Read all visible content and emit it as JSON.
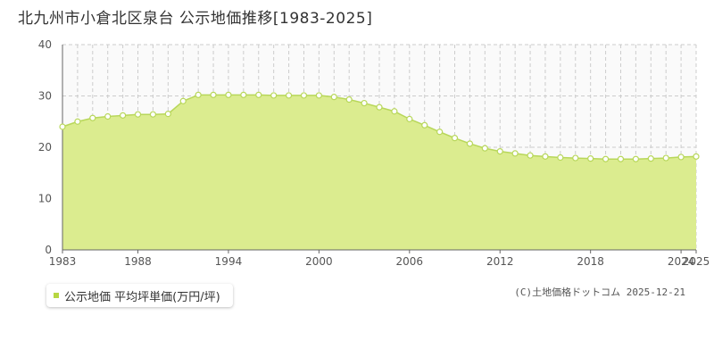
{
  "title": "北九州市小倉北区泉台 公示地価推移[1983-2025]",
  "legend": {
    "label": "公示地価 平均坪単価(万円/坪)"
  },
  "credit": "(C)土地価格ドットコム 2025-12-21",
  "colors": {
    "fill": "#dbec8f",
    "line": "#b8d75a",
    "point_fill": "#ffffff",
    "point_stroke": "#b8d75a",
    "grid": "#cccccc",
    "legend_swatch": "#b7d742"
  },
  "chart_data": {
    "type": "area",
    "xlabel": "",
    "ylabel": "",
    "ylim": [
      0,
      40
    ],
    "xlim": [
      1983,
      2025
    ],
    "grid": true,
    "y_ticks": [
      "0",
      "10",
      "20",
      "30",
      "40"
    ],
    "x_ticks": [
      "1983",
      "1988",
      "1994",
      "2000",
      "2006",
      "2012",
      "2018",
      "2024",
      "2025"
    ],
    "series": [
      {
        "name": "公示地価 平均坪単価(万円/坪)",
        "x": [
          1983,
          1984,
          1985,
          1986,
          1987,
          1988,
          1989,
          1990,
          1991,
          1992,
          1993,
          1994,
          1995,
          1996,
          1997,
          1998,
          1999,
          2000,
          2001,
          2002,
          2003,
          2004,
          2005,
          2006,
          2007,
          2008,
          2009,
          2010,
          2011,
          2012,
          2013,
          2014,
          2015,
          2016,
          2017,
          2018,
          2019,
          2020,
          2021,
          2022,
          2023,
          2024,
          2025
        ],
        "values": [
          24.0,
          25.0,
          25.7,
          26.0,
          26.2,
          26.4,
          26.4,
          26.5,
          29.0,
          30.2,
          30.2,
          30.2,
          30.2,
          30.2,
          30.1,
          30.1,
          30.1,
          30.1,
          29.8,
          29.3,
          28.6,
          27.8,
          27.0,
          25.5,
          24.3,
          23.0,
          21.8,
          20.7,
          19.8,
          19.2,
          18.8,
          18.4,
          18.2,
          18.0,
          17.9,
          17.8,
          17.7,
          17.7,
          17.7,
          17.8,
          17.9,
          18.1,
          18.2
        ]
      }
    ]
  }
}
